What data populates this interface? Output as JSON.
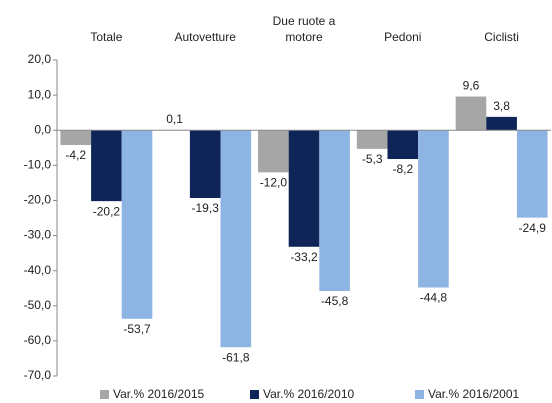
{
  "chart_data": {
    "type": "bar",
    "categories": [
      "Totale",
      "Autovetture",
      "Due ruote a\nmotore",
      "Pedoni",
      "Ciclisti"
    ],
    "series": [
      {
        "name": "Var.% 2016/2015",
        "color": "#a6a6a6",
        "values": [
          -4.2,
          0.1,
          -12.0,
          -5.3,
          9.6
        ],
        "value_labels": [
          "-4,2",
          "0,1",
          "-12,0",
          "-5,3",
          "9,6"
        ]
      },
      {
        "name": "Var.% 2016/2010",
        "color": "#0f2557",
        "values": [
          -20.2,
          -19.3,
          -33.2,
          -8.2,
          3.8
        ],
        "value_labels": [
          "-20,2",
          "-19,3",
          "-33,2",
          "-8,2",
          "3,8"
        ]
      },
      {
        "name": "Var.% 2016/2001",
        "color": "#8eb4e3",
        "values": [
          -53.7,
          -61.8,
          -45.8,
          -44.8,
          -24.9
        ],
        "value_labels": [
          "-53,7",
          "-61,8",
          "-45,8",
          "-44,8",
          "-24,9"
        ]
      }
    ],
    "ylim": [
      -70,
      20
    ],
    "yticks": [
      {
        "value": 20,
        "label": "20,0"
      },
      {
        "value": 10,
        "label": "10,0"
      },
      {
        "value": 0,
        "label": "0,0"
      },
      {
        "value": -10,
        "label": "-10,0"
      },
      {
        "value": -20,
        "label": "-20,0"
      },
      {
        "value": -30,
        "label": "-30,0"
      },
      {
        "value": -40,
        "label": "-40,0"
      },
      {
        "value": -50,
        "label": "-50,0"
      },
      {
        "value": -60,
        "label": "-60,0"
      },
      {
        "value": -70,
        "label": "-70,0"
      }
    ],
    "legend": "bottom"
  }
}
